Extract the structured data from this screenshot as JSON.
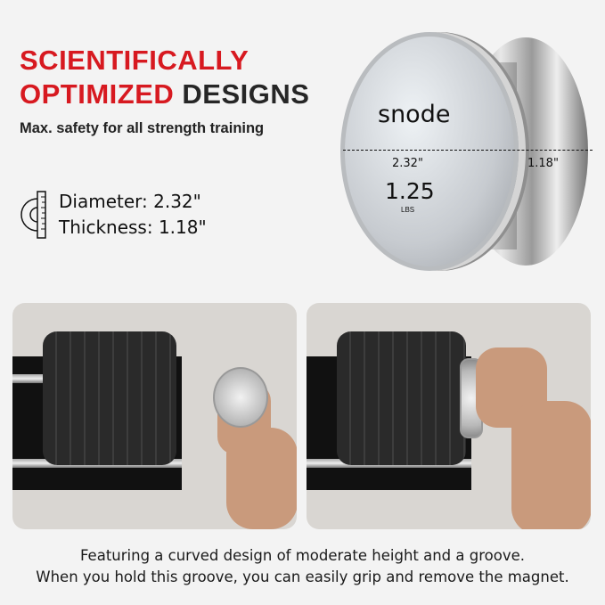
{
  "headline": {
    "line1": "SCIENTIFICALLY",
    "line2_red": "OPTIMIZED",
    "line2_dark": "DESIGNS"
  },
  "subtitle": "Max. safety for all strength training",
  "specs": {
    "icon": "ruler-protractor-icon",
    "diameter": "Diameter: 2.32\"",
    "thickness": "Thickness: 1.18\""
  },
  "product": {
    "brand": "snode",
    "diameter_label": "2.32\"",
    "thickness_label": "1.18\"",
    "weight": "1.25",
    "unit": "LBS"
  },
  "colors": {
    "accent": "#d71920",
    "text": "#262626",
    "background": "#f3f3f3"
  },
  "caption": {
    "line1": "Featuring a curved design of moderate height and a groove.",
    "line2": "When you hold this groove, you can easily grip and remove the magnet."
  }
}
